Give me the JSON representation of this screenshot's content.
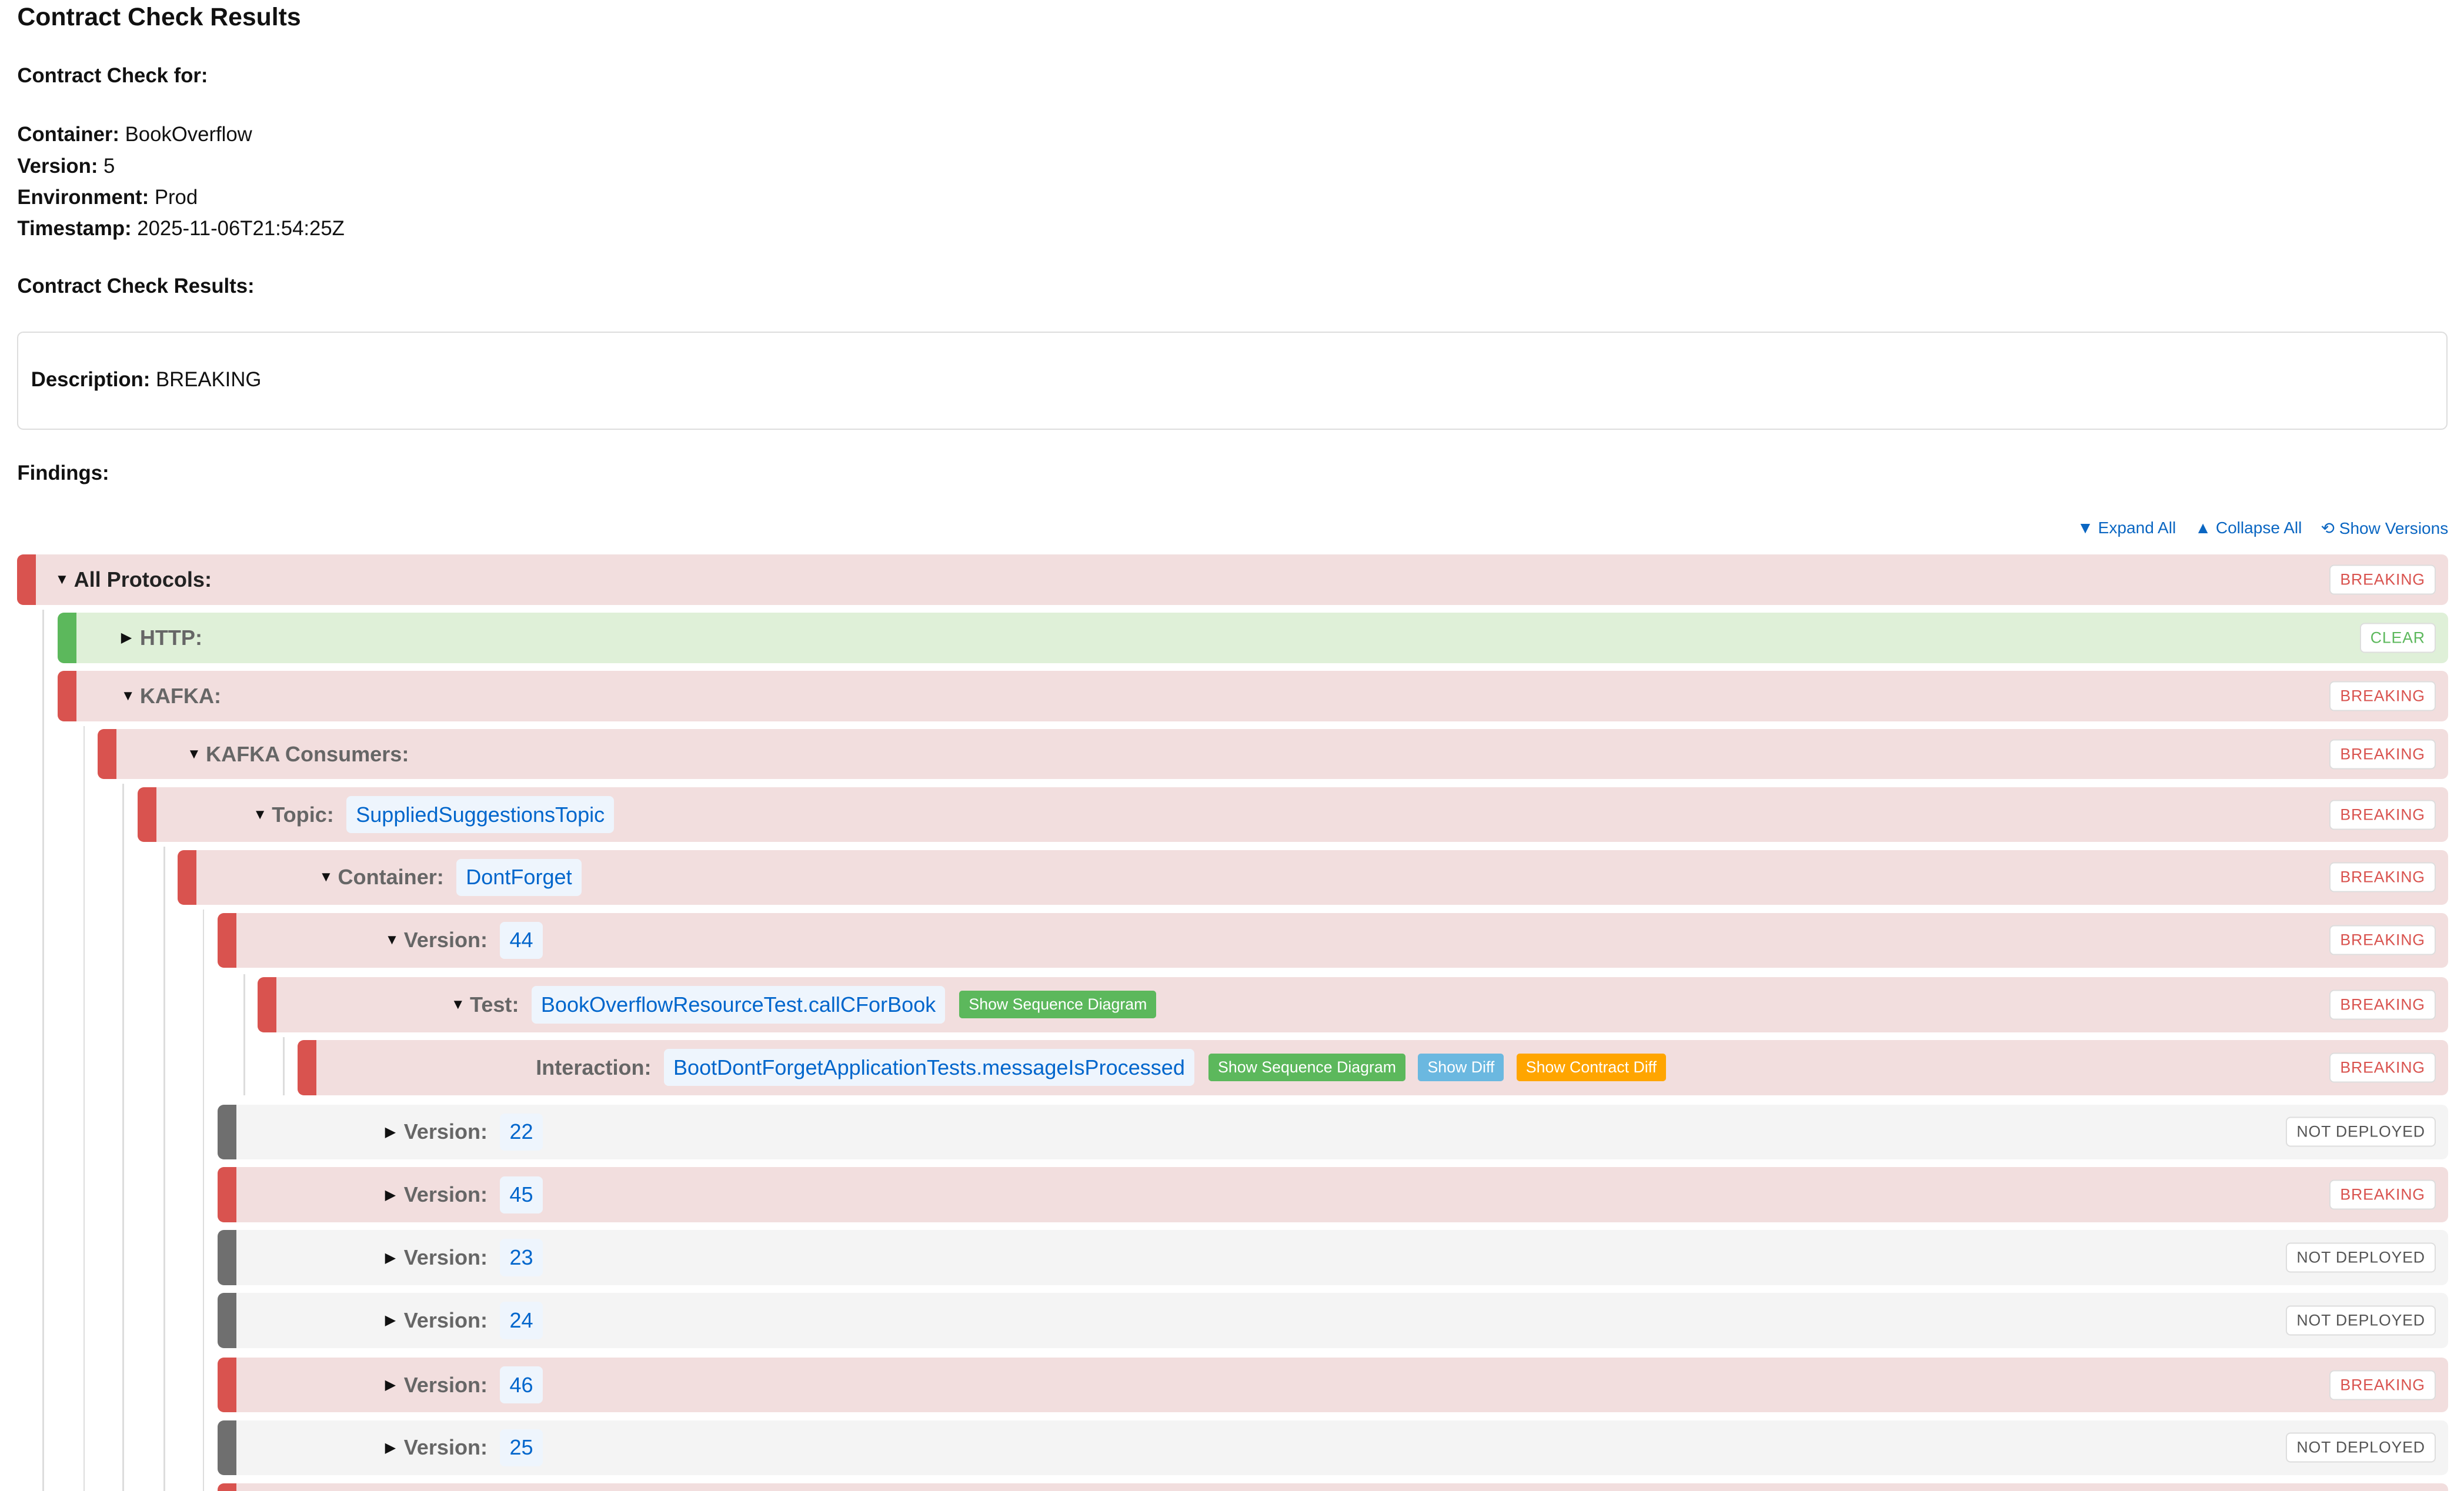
{
  "title": "Contract Check Results",
  "check_for_heading": "Contract Check for:",
  "meta": {
    "container_label": "Container:",
    "container": "BookOverflow",
    "version_label": "Version:",
    "version": "5",
    "environment_label": "Environment:",
    "environment": "Prod",
    "timestamp_label": "Timestamp:",
    "timestamp": "2025-11-06T21:54:25Z"
  },
  "results_heading": "Contract Check Results:",
  "description": {
    "label": "Description:",
    "value": "BREAKING"
  },
  "findings_heading": "Findings:",
  "toolbar": {
    "expand_all": "▼ Expand All",
    "collapse_all": "▲ Collapse All",
    "show_versions": "⟲ Show Versions"
  },
  "status_colors": {
    "BREAKING": "#d9534f",
    "CLEAR": "#5cb85c",
    "NOT DEPLOYED": "#6f6f6f"
  },
  "findings": [
    {
      "level": 0,
      "toggle": "▼",
      "label": "All Protocols:",
      "status": "BREAKING"
    },
    {
      "level": 1,
      "toggle": "▶",
      "label": "HTTP:",
      "status": "CLEAR"
    },
    {
      "level": 1,
      "toggle": "▼",
      "label": "KAFKA:",
      "status": "BREAKING"
    },
    {
      "level": 2,
      "toggle": "▼",
      "label": "KAFKA Consumers:",
      "status": "BREAKING"
    },
    {
      "level": 3,
      "toggle": "▼",
      "label": "Topic:",
      "value": "SuppliedSuggestionsTopic",
      "status": "BREAKING"
    },
    {
      "level": 4,
      "toggle": "▼",
      "label": "Container:",
      "value": "DontForget",
      "status": "BREAKING"
    },
    {
      "level": 5,
      "toggle": "▼",
      "label": "Version:",
      "value": "44",
      "status": "BREAKING"
    },
    {
      "level": 6,
      "toggle": "▼",
      "label": "Test:",
      "value": "BookOverflowResourceTest.callCForBook",
      "status": "BREAKING",
      "buttons": [
        {
          "label": "Show Sequence Diagram",
          "color": "green"
        }
      ]
    },
    {
      "level": 7,
      "toggle": "",
      "label": "Interaction:",
      "value": "BootDontForgetApplicationTests.messageIsProcessed",
      "status": "BREAKING",
      "buttons": [
        {
          "label": "Show Sequence Diagram",
          "color": "green"
        },
        {
          "label": "Show Diff",
          "color": "blue"
        },
        {
          "label": "Show Contract Diff",
          "color": "orange"
        }
      ]
    },
    {
      "level": 5,
      "toggle": "▶",
      "label": "Version:",
      "value": "22",
      "status": "NOT DEPLOYED"
    },
    {
      "level": 5,
      "toggle": "▶",
      "label": "Version:",
      "value": "45",
      "status": "BREAKING"
    },
    {
      "level": 5,
      "toggle": "▶",
      "label": "Version:",
      "value": "23",
      "status": "NOT DEPLOYED"
    },
    {
      "level": 5,
      "toggle": "▶",
      "label": "Version:",
      "value": "24",
      "status": "NOT DEPLOYED"
    },
    {
      "level": 5,
      "toggle": "▶",
      "label": "Version:",
      "value": "46",
      "status": "BREAKING"
    },
    {
      "level": 5,
      "toggle": "▶",
      "label": "Version:",
      "value": "25",
      "status": "NOT DEPLOYED"
    }
  ]
}
